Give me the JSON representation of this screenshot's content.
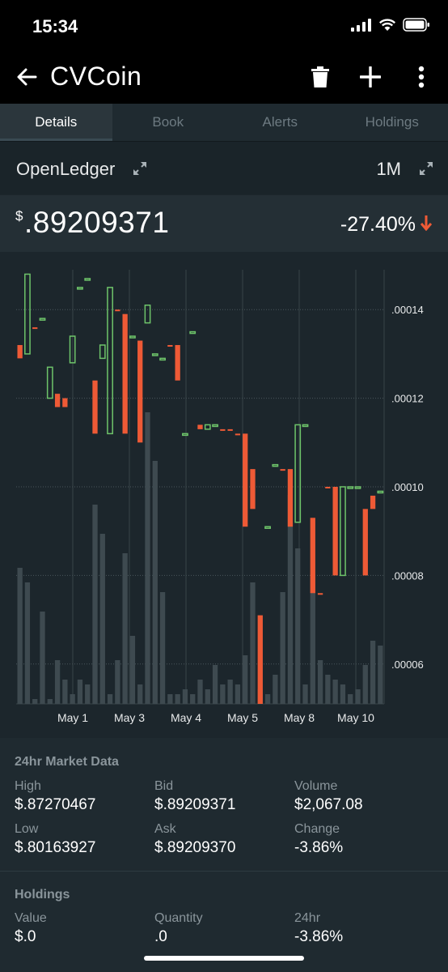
{
  "status": {
    "time": "15:34"
  },
  "header": {
    "title": "CVCoin",
    "icons": [
      "back-arrow-icon",
      "trash-icon",
      "plus-icon",
      "more-vert-icon"
    ]
  },
  "tabs": [
    {
      "label": "Details",
      "active": true
    },
    {
      "label": "Book",
      "active": false
    },
    {
      "label": "Alerts",
      "active": false
    },
    {
      "label": "Holdings",
      "active": false
    }
  ],
  "exchange": {
    "name": "OpenLedger",
    "range": "1M"
  },
  "price": {
    "symbol": "$",
    "value": ".89209371",
    "change": "-27.40%",
    "direction": "down"
  },
  "colors": {
    "up": "#6ec46a",
    "down": "#ee5a36",
    "volume": "#3e4a50",
    "background": "#1c262c"
  },
  "chart_data": {
    "type": "candlestick",
    "x_labels": [
      "May 1",
      "May 3",
      "May 4",
      "May 5",
      "May 8",
      "May 10"
    ],
    "y_ticks": [
      ".00014",
      ".00012",
      ".00010",
      ".00008",
      ".00006"
    ],
    "ylim": [
      5.1e-05,
      0.000149
    ],
    "grid": true,
    "candles": [
      {
        "o": 0.000129,
        "c": 0.000132,
        "dir": "down"
      },
      {
        "o": 0.00013,
        "c": 0.000148,
        "dir": "up"
      },
      {
        "o": 0.000136,
        "c": 0.000136,
        "dir": "down"
      },
      {
        "o": 0.000138,
        "c": 0.000138,
        "dir": "up"
      },
      {
        "o": 0.00012,
        "c": 0.000127,
        "dir": "up"
      },
      {
        "o": 0.000118,
        "c": 0.000121,
        "dir": "down"
      },
      {
        "o": 0.000118,
        "c": 0.00012,
        "dir": "down"
      },
      {
        "o": 0.000128,
        "c": 0.000134,
        "dir": "up"
      },
      {
        "o": 0.000145,
        "c": 0.000145,
        "dir": "up"
      },
      {
        "o": 0.000147,
        "c": 0.000147,
        "dir": "up"
      },
      {
        "o": 0.000112,
        "c": 0.000124,
        "dir": "down"
      },
      {
        "o": 0.000129,
        "c": 0.000132,
        "dir": "up"
      },
      {
        "o": 0.000112,
        "c": 0.000145,
        "dir": "up"
      },
      {
        "o": 0.00014,
        "c": 0.00014,
        "dir": "down"
      },
      {
        "o": 0.000112,
        "c": 0.000139,
        "dir": "down"
      },
      {
        "o": 0.000134,
        "c": 0.000134,
        "dir": "up"
      },
      {
        "o": 0.00011,
        "c": 0.000133,
        "dir": "down"
      },
      {
        "o": 0.000137,
        "c": 0.000141,
        "dir": "up"
      },
      {
        "o": 0.00013,
        "c": 0.00013,
        "dir": "up"
      },
      {
        "o": 0.000129,
        "c": 0.000129,
        "dir": "up"
      },
      {
        "o": 0.000132,
        "c": 0.000132,
        "dir": "down"
      },
      {
        "o": 0.000124,
        "c": 0.000132,
        "dir": "down"
      },
      {
        "o": 0.000112,
        "c": 0.000112,
        "dir": "up"
      },
      {
        "o": 0.000135,
        "c": 0.000135,
        "dir": "up"
      },
      {
        "o": 0.000113,
        "c": 0.000114,
        "dir": "down"
      },
      {
        "o": 0.000113,
        "c": 0.000114,
        "dir": "up"
      },
      {
        "o": 0.000114,
        "c": 0.000114,
        "dir": "up"
      },
      {
        "o": 0.000113,
        "c": 0.000113,
        "dir": "down"
      },
      {
        "o": 0.000113,
        "c": 0.000113,
        "dir": "down"
      },
      {
        "o": 0.000112,
        "c": 0.000112,
        "dir": "down"
      },
      {
        "o": 9.1e-05,
        "c": 0.000112,
        "dir": "down"
      },
      {
        "o": 9.5e-05,
        "c": 0.000104,
        "dir": "down"
      },
      {
        "o": 5.1e-05,
        "c": 7.1e-05,
        "dir": "down"
      },
      {
        "o": 9.1e-05,
        "c": 9.1e-05,
        "dir": "up"
      },
      {
        "o": 0.000105,
        "c": 0.000105,
        "dir": "up"
      },
      {
        "o": 0.000104,
        "c": 0.000104,
        "dir": "down"
      },
      {
        "o": 9.1e-05,
        "c": 0.000104,
        "dir": "down"
      },
      {
        "o": 9.2e-05,
        "c": 0.000114,
        "dir": "up"
      },
      {
        "o": 0.000114,
        "c": 0.000114,
        "dir": "up"
      },
      {
        "o": 7.6e-05,
        "c": 9.3e-05,
        "dir": "down"
      },
      {
        "o": 7.6e-05,
        "c": 7.6e-05,
        "dir": "down"
      },
      {
        "o": 0.0001,
        "c": 0.0001,
        "dir": "down"
      },
      {
        "o": 8e-05,
        "c": 0.0001,
        "dir": "down"
      },
      {
        "o": 8e-05,
        "c": 0.0001,
        "dir": "up"
      },
      {
        "o": 0.0001,
        "c": 0.0001,
        "dir": "up"
      },
      {
        "o": 0.0001,
        "c": 0.0001,
        "dir": "up"
      },
      {
        "o": 8e-05,
        "c": 9.5e-05,
        "dir": "down"
      },
      {
        "o": 9.5e-05,
        "c": 9.8e-05,
        "dir": "down"
      },
      {
        "o": 9.9e-05,
        "c": 9.9e-05,
        "dir": "up"
      }
    ],
    "volume": [
      28,
      25,
      1,
      19,
      1,
      9,
      5,
      2,
      5,
      4,
      41,
      35,
      2,
      9,
      31,
      14,
      4,
      60,
      50,
      23,
      2,
      2,
      3,
      2,
      5,
      3,
      8,
      4,
      5,
      4,
      10,
      25,
      3,
      2,
      6,
      23,
      43,
      32,
      4,
      26,
      9,
      6,
      5,
      4,
      2,
      3,
      8,
      13,
      12
    ]
  },
  "market_section": {
    "title": "24hr Market Data",
    "high_label": "High",
    "high_value": "$.87270467",
    "bid_label": "Bid",
    "bid_value": "$.89209371",
    "volume_label": "Volume",
    "volume_value": "$2,067.08",
    "low_label": "Low",
    "low_value": "$.80163927",
    "ask_label": "Ask",
    "ask_value": "$.89209370",
    "change_label": "Change",
    "change_value": "-3.86%"
  },
  "holdings_section": {
    "title": "Holdings",
    "value_label": "Value",
    "value_value": "$.0",
    "quantity_label": "Quantity",
    "quantity_value": ".0",
    "h24_label": "24hr",
    "h24_value": "-3.86%"
  }
}
